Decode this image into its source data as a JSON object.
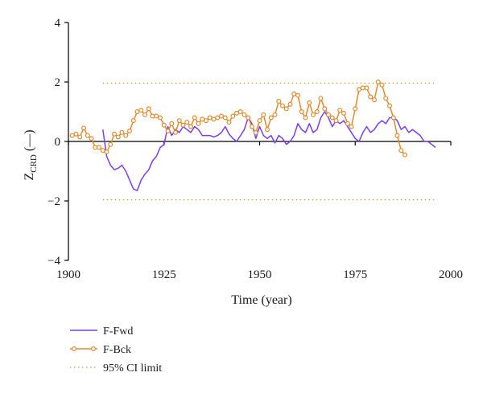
{
  "chart_data": {
    "type": "line",
    "xlabel": "Time (year)",
    "ylabel": "Z",
    "ylabel_sub": "CRD",
    "ylabel_suffix": " (—)",
    "xlim": [
      1900,
      2000
    ],
    "ylim": [
      -4,
      4
    ],
    "xticks": [
      1900,
      1925,
      1950,
      1975,
      2000
    ],
    "yticks": [
      4,
      2,
      0,
      -2,
      -4
    ],
    "ytick_labels": [
      "4",
      "2",
      "0",
      "−2",
      "−4"
    ],
    "grid": false,
    "legend_position": "bottom-left",
    "ci_limit": 1.96,
    "ci_span": [
      1909,
      1996
    ],
    "series": [
      {
        "name": "F-Fwd",
        "color": "#7a3cf0",
        "marker": "none",
        "x": [
          1909,
          1910,
          1911,
          1912,
          1913,
          1914,
          1915,
          1916,
          1917,
          1918,
          1919,
          1920,
          1921,
          1922,
          1923,
          1924,
          1925,
          1926,
          1927,
          1928,
          1929,
          1930,
          1931,
          1932,
          1933,
          1934,
          1935,
          1936,
          1937,
          1938,
          1939,
          1940,
          1941,
          1942,
          1943,
          1944,
          1945,
          1946,
          1947,
          1948,
          1949,
          1950,
          1951,
          1952,
          1953,
          1954,
          1955,
          1956,
          1957,
          1958,
          1959,
          1960,
          1961,
          1962,
          1963,
          1964,
          1965,
          1966,
          1967,
          1968,
          1969,
          1970,
          1971,
          1972,
          1973,
          1974,
          1975,
          1976,
          1977,
          1978,
          1979,
          1980,
          1981,
          1982,
          1983,
          1984,
          1985,
          1986,
          1987,
          1988,
          1989,
          1990,
          1991,
          1992,
          1993,
          1994,
          1995,
          1996
        ],
        "y": [
          0.4,
          -0.5,
          -0.8,
          -0.95,
          -0.9,
          -0.8,
          -1.0,
          -1.3,
          -1.6,
          -1.65,
          -1.3,
          -1.1,
          -0.95,
          -0.65,
          -0.5,
          -0.2,
          -0.1,
          0.5,
          0.2,
          0.4,
          0.3,
          0.5,
          0.4,
          0.3,
          0.5,
          0.4,
          0.2,
          0.2,
          0.2,
          0.15,
          0.2,
          0.3,
          0.5,
          0.25,
          0.1,
          0.0,
          0.2,
          0.4,
          0.8,
          0.6,
          0.1,
          0.5,
          0.2,
          0.1,
          0.2,
          -0.05,
          0.2,
          0.1,
          -0.1,
          0.0,
          0.2,
          0.6,
          0.4,
          0.3,
          0.6,
          0.3,
          0.4,
          0.8,
          1.0,
          0.8,
          0.5,
          0.7,
          0.6,
          0.7,
          0.5,
          0.3,
          0.1,
          0.0,
          0.3,
          0.5,
          0.3,
          0.4,
          0.6,
          0.7,
          0.6,
          0.8,
          0.8,
          0.7,
          0.4,
          0.5,
          0.3,
          0.4,
          0.3,
          0.2,
          0.0,
          0.0,
          -0.1,
          -0.2
        ]
      },
      {
        "name": "F-Bck",
        "color": "#e08a2e",
        "marker": "circle",
        "x": [
          1901,
          1902,
          1903,
          1904,
          1905,
          1906,
          1907,
          1908,
          1909,
          1910,
          1911,
          1912,
          1913,
          1914,
          1915,
          1916,
          1917,
          1918,
          1919,
          1920,
          1921,
          1922,
          1923,
          1924,
          1925,
          1926,
          1927,
          1928,
          1929,
          1930,
          1931,
          1932,
          1933,
          1934,
          1935,
          1936,
          1937,
          1938,
          1939,
          1940,
          1941,
          1942,
          1943,
          1944,
          1945,
          1946,
          1947,
          1948,
          1949,
          1950,
          1951,
          1952,
          1953,
          1954,
          1955,
          1956,
          1957,
          1958,
          1959,
          1960,
          1961,
          1962,
          1963,
          1964,
          1965,
          1966,
          1967,
          1968,
          1969,
          1970,
          1971,
          1972,
          1973,
          1974,
          1975,
          1976,
          1977,
          1978,
          1979,
          1980,
          1981,
          1982,
          1983,
          1984,
          1985,
          1986,
          1987,
          1988
        ],
        "y": [
          0.2,
          0.25,
          0.15,
          0.45,
          0.2,
          0.1,
          -0.2,
          -0.2,
          -0.3,
          -0.35,
          -0.1,
          0.25,
          0.15,
          0.3,
          0.2,
          0.35,
          0.7,
          1.0,
          1.05,
          0.9,
          1.1,
          0.85,
          0.85,
          0.8,
          0.55,
          0.35,
          0.6,
          0.3,
          0.7,
          0.55,
          0.65,
          0.5,
          0.8,
          0.6,
          0.75,
          0.7,
          0.8,
          0.75,
          0.8,
          0.85,
          0.8,
          0.65,
          0.85,
          0.95,
          1.0,
          0.9,
          0.8,
          0.5,
          0.3,
          0.7,
          0.9,
          0.4,
          0.8,
          0.9,
          1.35,
          1.2,
          1.1,
          1.25,
          1.6,
          1.55,
          1.0,
          0.8,
          1.3,
          0.9,
          1.0,
          1.45,
          1.1,
          0.9,
          0.8,
          0.7,
          1.05,
          0.95,
          0.6,
          0.5,
          1.1,
          1.75,
          1.8,
          1.8,
          1.5,
          1.4,
          2.0,
          1.9,
          1.45,
          1.2,
          0.8,
          0.2,
          -0.3,
          -0.45
        ]
      },
      {
        "name": "95% CI limit",
        "color": "#e08a2e",
        "marker": "none",
        "style": "dotted"
      }
    ]
  }
}
